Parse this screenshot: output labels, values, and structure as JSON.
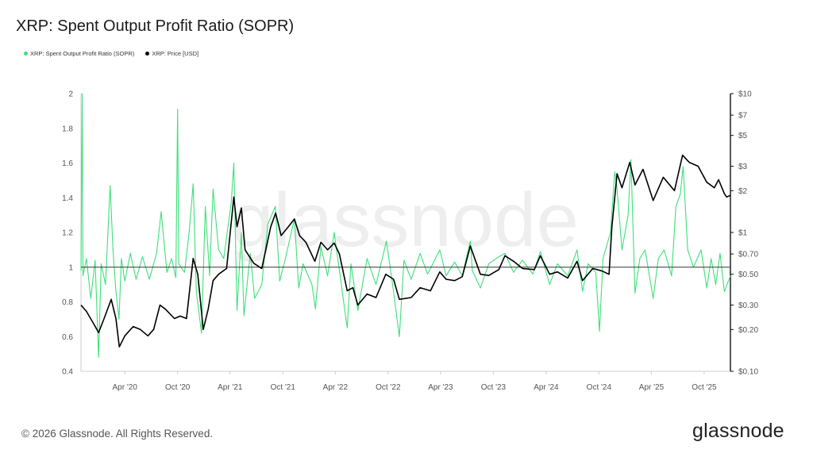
{
  "title": "XRP: Spent Output Profit Ratio (SOPR)",
  "legend": [
    {
      "label": "XRP: Spent Output Profit Ratio (SOPR)",
      "color": "#3ee07a"
    },
    {
      "label": "XRP: Price [USD]",
      "color": "#000000"
    }
  ],
  "watermark": "glassnode",
  "footer": "© 2026 Glassnode. All Rights Reserved.",
  "brand": "glassnode",
  "chart_data": {
    "type": "line",
    "title": "XRP: Spent Output Profit Ratio (SOPR)",
    "x_start": "2019-11-01",
    "x_end": "2025-12-31",
    "x_ticks": [
      {
        "date": "2020-04-01",
        "label": "Apr '20"
      },
      {
        "date": "2020-10-01",
        "label": "Oct '20"
      },
      {
        "date": "2021-04-01",
        "label": "Apr '21"
      },
      {
        "date": "2021-10-01",
        "label": "Oct '21"
      },
      {
        "date": "2022-04-01",
        "label": "Apr '22"
      },
      {
        "date": "2022-10-01",
        "label": "Oct '22"
      },
      {
        "date": "2023-04-01",
        "label": "Apr '23"
      },
      {
        "date": "2023-10-01",
        "label": "Oct '23"
      },
      {
        "date": "2024-04-01",
        "label": "Apr '24"
      },
      {
        "date": "2024-10-01",
        "label": "Oct '24"
      },
      {
        "date": "2025-04-01",
        "label": "Apr '25"
      },
      {
        "date": "2025-10-01",
        "label": "Oct '25"
      }
    ],
    "left_axis": {
      "ylim": [
        0.4,
        2
      ],
      "ticks": [
        0.4,
        0.6,
        0.8,
        1,
        1.2,
        1.4,
        1.6,
        1.8,
        2
      ]
    },
    "right_axis": {
      "scale": "log",
      "ylim": [
        0.1,
        10
      ],
      "ticks": [
        {
          "value": 0.1,
          "label": "$0.10"
        },
        {
          "value": 0.2,
          "label": "$0.20"
        },
        {
          "value": 0.3,
          "label": "$0.30"
        },
        {
          "value": 0.5,
          "label": "$0.50"
        },
        {
          "value": 0.7,
          "label": "$0.70"
        },
        {
          "value": 1,
          "label": "$1"
        },
        {
          "value": 2,
          "label": "$2"
        },
        {
          "value": 3,
          "label": "$3"
        },
        {
          "value": 5,
          "label": "$5"
        },
        {
          "value": 7,
          "label": "$7"
        },
        {
          "value": 10,
          "label": "$10"
        }
      ]
    },
    "reference_line": 1,
    "series": [
      {
        "name": "XRP: Spent Output Profit Ratio (SOPR)",
        "axis": "left",
        "color": "#3ee07a",
        "points": [
          [
            "2019-11-01",
            0.98
          ],
          [
            "2019-11-05",
            2.0
          ],
          [
            "2019-11-08",
            0.95
          ],
          [
            "2019-11-20",
            1.05
          ],
          [
            "2019-12-05",
            0.82
          ],
          [
            "2019-12-20",
            1.04
          ],
          [
            "2020-01-01",
            0.48
          ],
          [
            "2020-01-10",
            1.02
          ],
          [
            "2020-01-25",
            0.9
          ],
          [
            "2020-02-10",
            1.47
          ],
          [
            "2020-02-20",
            1.1
          ],
          [
            "2020-03-01",
            0.86
          ],
          [
            "2020-03-12",
            0.7
          ],
          [
            "2020-03-20",
            1.05
          ],
          [
            "2020-04-01",
            0.92
          ],
          [
            "2020-04-20",
            1.08
          ],
          [
            "2020-05-10",
            0.93
          ],
          [
            "2020-06-01",
            1.06
          ],
          [
            "2020-06-25",
            0.93
          ],
          [
            "2020-07-20",
            1.08
          ],
          [
            "2020-08-05",
            1.32
          ],
          [
            "2020-08-25",
            0.97
          ],
          [
            "2020-09-10",
            1.05
          ],
          [
            "2020-09-25",
            0.94
          ],
          [
            "2020-10-01",
            1.91
          ],
          [
            "2020-10-05",
            1.02
          ],
          [
            "2020-10-25",
            0.97
          ],
          [
            "2020-11-10",
            1.2
          ],
          [
            "2020-11-24",
            1.48
          ],
          [
            "2020-12-05",
            0.86
          ],
          [
            "2020-12-23",
            0.62
          ],
          [
            "2021-01-05",
            1.35
          ],
          [
            "2021-01-20",
            0.95
          ],
          [
            "2021-02-01",
            1.45
          ],
          [
            "2021-02-20",
            1.1
          ],
          [
            "2021-03-10",
            1.05
          ],
          [
            "2021-04-05",
            1.37
          ],
          [
            "2021-04-14",
            1.6
          ],
          [
            "2021-04-25",
            0.75
          ],
          [
            "2021-05-10",
            1.2
          ],
          [
            "2021-05-19",
            0.72
          ],
          [
            "2021-06-10",
            1.08
          ],
          [
            "2021-06-25",
            0.82
          ],
          [
            "2021-07-20",
            0.9
          ],
          [
            "2021-08-10",
            1.25
          ],
          [
            "2021-09-05",
            1.35
          ],
          [
            "2021-09-20",
            0.92
          ],
          [
            "2021-10-10",
            1.05
          ],
          [
            "2021-11-10",
            1.28
          ],
          [
            "2021-11-25",
            0.88
          ],
          [
            "2021-12-10",
            1.02
          ],
          [
            "2022-01-10",
            0.9
          ],
          [
            "2022-01-22",
            0.76
          ],
          [
            "2022-02-10",
            1.12
          ],
          [
            "2022-03-05",
            0.95
          ],
          [
            "2022-03-28",
            1.2
          ],
          [
            "2022-04-20",
            0.92
          ],
          [
            "2022-05-12",
            0.65
          ],
          [
            "2022-05-25",
            1.02
          ],
          [
            "2022-06-18",
            0.75
          ],
          [
            "2022-07-20",
            1.05
          ],
          [
            "2022-08-20",
            0.9
          ],
          [
            "2022-09-25",
            1.15
          ],
          [
            "2022-10-15",
            0.92
          ],
          [
            "2022-11-09",
            0.6
          ],
          [
            "2022-11-25",
            1.04
          ],
          [
            "2022-12-20",
            0.93
          ],
          [
            "2023-01-20",
            1.08
          ],
          [
            "2023-02-15",
            0.96
          ],
          [
            "2023-03-29",
            1.1
          ],
          [
            "2023-04-20",
            0.95
          ],
          [
            "2023-05-20",
            1.03
          ],
          [
            "2023-06-15",
            0.95
          ],
          [
            "2023-07-13",
            1.15
          ],
          [
            "2023-07-20",
            0.98
          ],
          [
            "2023-08-17",
            0.88
          ],
          [
            "2023-09-15",
            1.02
          ],
          [
            "2023-10-20",
            1.06
          ],
          [
            "2023-11-10",
            1.08
          ],
          [
            "2023-12-10",
            0.97
          ],
          [
            "2024-01-10",
            1.04
          ],
          [
            "2024-02-15",
            0.96
          ],
          [
            "2024-03-12",
            1.09
          ],
          [
            "2024-04-13",
            0.9
          ],
          [
            "2024-05-10",
            1.02
          ],
          [
            "2024-06-15",
            0.95
          ],
          [
            "2024-07-17",
            1.1
          ],
          [
            "2024-08-05",
            0.86
          ],
          [
            "2024-08-25",
            1.02
          ],
          [
            "2024-09-20",
            0.97
          ],
          [
            "2024-10-03",
            0.63
          ],
          [
            "2024-10-15",
            1.05
          ],
          [
            "2024-11-10",
            1.2
          ],
          [
            "2024-11-25",
            1.55
          ],
          [
            "2024-12-03",
            1.45
          ],
          [
            "2024-12-20",
            1.1
          ],
          [
            "2025-01-10",
            1.3
          ],
          [
            "2025-01-20",
            1.62
          ],
          [
            "2025-02-03",
            0.85
          ],
          [
            "2025-02-20",
            1.05
          ],
          [
            "2025-03-10",
            1.1
          ],
          [
            "2025-04-07",
            0.82
          ],
          [
            "2025-04-25",
            1.05
          ],
          [
            "2025-05-15",
            1.1
          ],
          [
            "2025-06-10",
            0.95
          ],
          [
            "2025-06-25",
            1.35
          ],
          [
            "2025-07-10",
            1.42
          ],
          [
            "2025-07-20",
            1.58
          ],
          [
            "2025-08-05",
            1.1
          ],
          [
            "2025-08-25",
            1.0
          ],
          [
            "2025-09-20",
            1.1
          ],
          [
            "2025-10-10",
            0.88
          ],
          [
            "2025-10-25",
            1.05
          ],
          [
            "2025-11-10",
            0.9
          ],
          [
            "2025-11-25",
            1.08
          ],
          [
            "2025-12-10",
            0.86
          ],
          [
            "2025-12-31",
            0.95
          ]
        ]
      },
      {
        "name": "XRP: Price [USD]",
        "axis": "right",
        "color": "#000000",
        "points": [
          [
            "2019-11-01",
            0.3
          ],
          [
            "2019-11-20",
            0.27
          ],
          [
            "2019-12-15",
            0.22
          ],
          [
            "2020-01-01",
            0.19
          ],
          [
            "2020-01-20",
            0.24
          ],
          [
            "2020-02-14",
            0.33
          ],
          [
            "2020-03-01",
            0.24
          ],
          [
            "2020-03-13",
            0.15
          ],
          [
            "2020-04-01",
            0.18
          ],
          [
            "2020-04-30",
            0.21
          ],
          [
            "2020-05-25",
            0.2
          ],
          [
            "2020-06-20",
            0.18
          ],
          [
            "2020-07-10",
            0.2
          ],
          [
            "2020-08-01",
            0.3
          ],
          [
            "2020-08-20",
            0.28
          ],
          [
            "2020-09-20",
            0.24
          ],
          [
            "2020-10-10",
            0.25
          ],
          [
            "2020-11-01",
            0.24
          ],
          [
            "2020-11-24",
            0.65
          ],
          [
            "2020-12-10",
            0.5
          ],
          [
            "2020-12-29",
            0.2
          ],
          [
            "2021-01-15",
            0.28
          ],
          [
            "2021-02-01",
            0.45
          ],
          [
            "2021-02-20",
            0.5
          ],
          [
            "2021-03-20",
            0.55
          ],
          [
            "2021-04-14",
            1.8
          ],
          [
            "2021-04-25",
            1.1
          ],
          [
            "2021-05-10",
            1.5
          ],
          [
            "2021-05-23",
            0.75
          ],
          [
            "2021-06-22",
            0.6
          ],
          [
            "2021-07-20",
            0.55
          ],
          [
            "2021-08-20",
            1.1
          ],
          [
            "2021-09-06",
            1.38
          ],
          [
            "2021-09-25",
            0.95
          ],
          [
            "2021-10-20",
            1.1
          ],
          [
            "2021-11-10",
            1.25
          ],
          [
            "2021-11-28",
            0.95
          ],
          [
            "2021-12-20",
            0.85
          ],
          [
            "2022-01-20",
            0.62
          ],
          [
            "2022-02-10",
            0.85
          ],
          [
            "2022-03-05",
            0.75
          ],
          [
            "2022-03-28",
            0.84
          ],
          [
            "2022-04-15",
            0.7
          ],
          [
            "2022-05-12",
            0.38
          ],
          [
            "2022-06-01",
            0.4
          ],
          [
            "2022-06-18",
            0.3
          ],
          [
            "2022-07-20",
            0.36
          ],
          [
            "2022-08-20",
            0.34
          ],
          [
            "2022-09-23",
            0.5
          ],
          [
            "2022-10-20",
            0.46
          ],
          [
            "2022-11-09",
            0.33
          ],
          [
            "2022-12-20",
            0.34
          ],
          [
            "2023-01-20",
            0.4
          ],
          [
            "2023-02-25",
            0.38
          ],
          [
            "2023-03-29",
            0.52
          ],
          [
            "2023-04-20",
            0.46
          ],
          [
            "2023-05-20",
            0.45
          ],
          [
            "2023-06-15",
            0.48
          ],
          [
            "2023-07-13",
            0.8
          ],
          [
            "2023-07-25",
            0.68
          ],
          [
            "2023-08-17",
            0.5
          ],
          [
            "2023-09-15",
            0.49
          ],
          [
            "2023-10-20",
            0.54
          ],
          [
            "2023-11-10",
            0.68
          ],
          [
            "2023-12-10",
            0.62
          ],
          [
            "2024-01-10",
            0.55
          ],
          [
            "2024-02-20",
            0.54
          ],
          [
            "2024-03-12",
            0.68
          ],
          [
            "2024-04-13",
            0.5
          ],
          [
            "2024-05-10",
            0.52
          ],
          [
            "2024-06-15",
            0.47
          ],
          [
            "2024-07-17",
            0.62
          ],
          [
            "2024-08-05",
            0.45
          ],
          [
            "2024-09-10",
            0.55
          ],
          [
            "2024-10-10",
            0.53
          ],
          [
            "2024-11-05",
            0.5
          ],
          [
            "2024-11-15",
            1.1
          ],
          [
            "2024-12-03",
            2.65
          ],
          [
            "2024-12-20",
            2.1
          ],
          [
            "2025-01-16",
            3.2
          ],
          [
            "2025-02-03",
            2.2
          ],
          [
            "2025-03-03",
            2.85
          ],
          [
            "2025-04-07",
            1.7
          ],
          [
            "2025-05-12",
            2.5
          ],
          [
            "2025-06-20",
            2.0
          ],
          [
            "2025-07-18",
            3.6
          ],
          [
            "2025-08-10",
            3.2
          ],
          [
            "2025-09-10",
            3.0
          ],
          [
            "2025-10-10",
            2.3
          ],
          [
            "2025-11-05",
            2.1
          ],
          [
            "2025-11-20",
            2.4
          ],
          [
            "2025-12-10",
            1.9
          ],
          [
            "2025-12-18",
            1.8
          ],
          [
            "2025-12-31",
            1.85
          ]
        ]
      }
    ]
  }
}
